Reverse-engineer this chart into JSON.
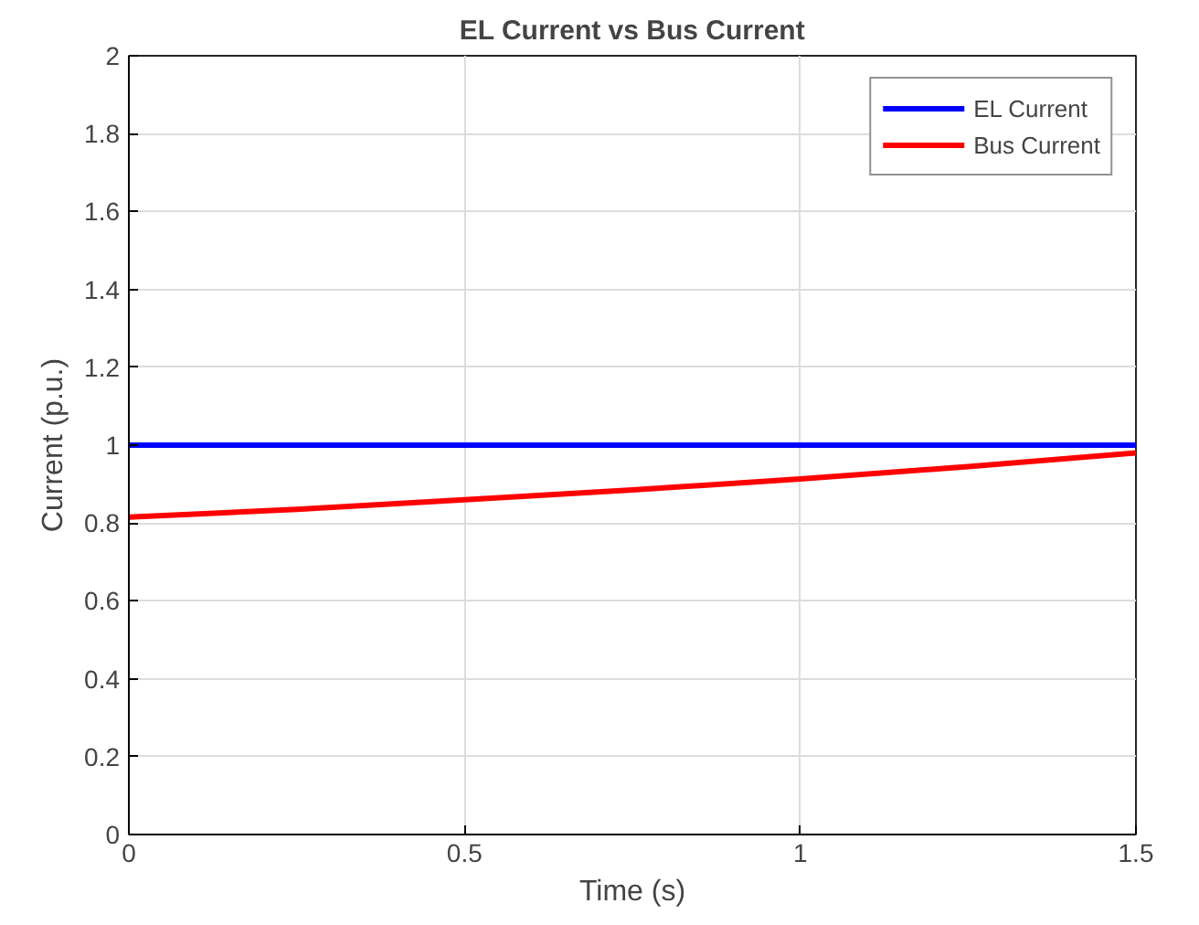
{
  "chart_data": {
    "type": "line",
    "title": "EL Current vs Bus Current",
    "xlabel": "Time (s)",
    "ylabel": "Current (p.u.)",
    "x": [
      0,
      0.25,
      0.5,
      0.75,
      1.0,
      1.25,
      1.5
    ],
    "series": [
      {
        "name": "EL Current",
        "color": "#0000ff",
        "values": [
          1,
          1,
          1,
          1,
          1,
          1,
          1
        ]
      },
      {
        "name": "Bus Current",
        "color": "#ff0000",
        "values": [
          0.815,
          0.835,
          0.86,
          0.885,
          0.913,
          0.945,
          0.98
        ]
      }
    ],
    "xlim": [
      0,
      1.5
    ],
    "ylim": [
      0,
      2
    ],
    "xticks": [
      0,
      0.5,
      1,
      1.5
    ],
    "yticks": [
      0,
      0.2,
      0.4,
      0.6,
      0.8,
      1,
      1.2,
      1.4,
      1.6,
      1.8,
      2
    ],
    "grid": true,
    "legend": "top right",
    "marker": "none",
    "line_style": "solid"
  }
}
